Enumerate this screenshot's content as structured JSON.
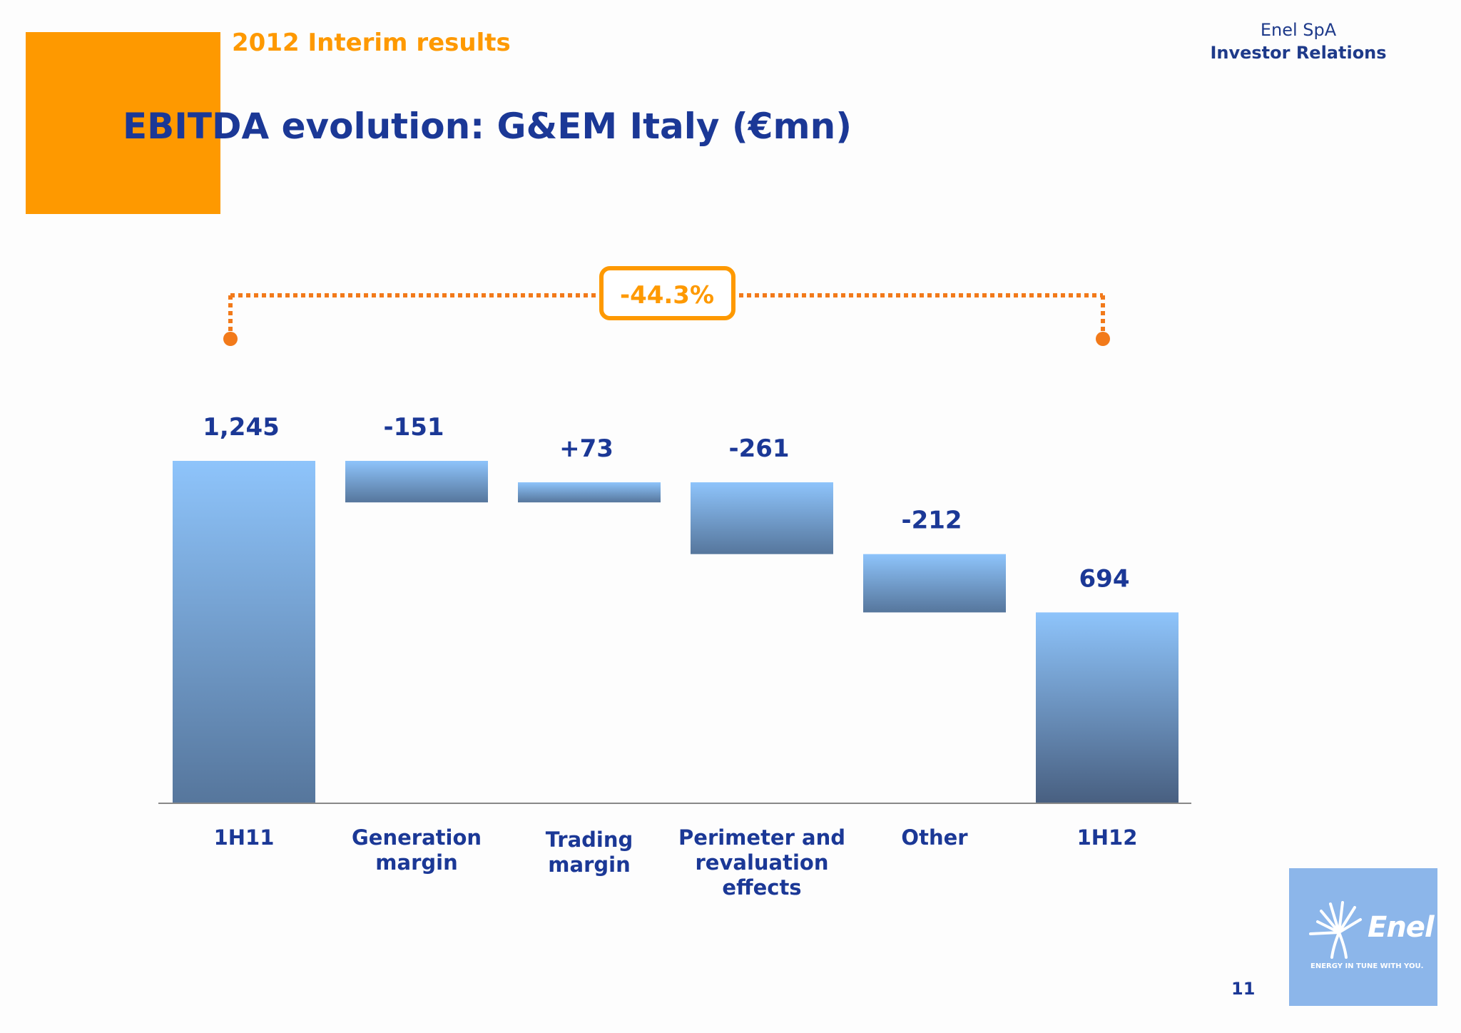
{
  "header": {
    "subtitle": "2012 Interim results",
    "company": "Enel SpA",
    "department": "Investor Relations",
    "title": "EBITDA evolution: G&EM Italy (€mn)"
  },
  "chart_data": {
    "type": "waterfall",
    "categories": [
      "1H11",
      "Generation\nmargin",
      "Trading\nmargin",
      "Perimeter and\nrevaluation\neffects",
      "Other",
      "1H12"
    ],
    "values": [
      1245,
      -151,
      73,
      -261,
      -212,
      694
    ],
    "value_labels": [
      "1,245",
      "-151",
      "+73",
      "-261",
      "-212",
      "694"
    ],
    "kinds": [
      "total",
      "delta",
      "delta",
      "delta",
      "delta",
      "total"
    ],
    "change_label": "-44.3%",
    "colors": {
      "bar_top": "#8ec4fb",
      "bar_bottom": "#56769c",
      "accent": "#f27a1a",
      "label": "#1b3896"
    }
  },
  "footer": {
    "page_number": "11",
    "logo_text": "Enel",
    "logo_tagline": "ENERGY IN TUNE WITH YOU."
  }
}
